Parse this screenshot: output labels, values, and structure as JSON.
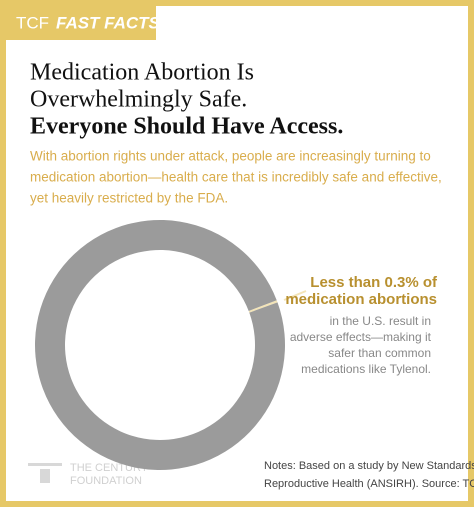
{
  "chart_data": {
    "type": "pie",
    "badge": {
      "brand": "TCF",
      "label": "FAST FACTS"
    },
    "title": [
      "Medication Abortion Is",
      "Overwhelmingly Safe.",
      "Everyone Should Have Access."
    ],
    "subtitle": [
      "With abortion rights under attack, people are increasingly turning to",
      "medication abortion—health care that is incredibly safe and effective,",
      "yet heavily restricted by the FDA."
    ],
    "values": [
      0.3,
      99.7
    ],
    "colors": [
      "#f3e4b8",
      "#9b9b9b"
    ],
    "annotation": {
      "highlight": [
        "Less than 0.3% of",
        "medication abortions"
      ],
      "detail": [
        "in the U.S. result in",
        "adverse effects—making it",
        "safer than common",
        "medications like Tylenol."
      ]
    },
    "logo": [
      "THE CENTURY",
      "FOUNDATION"
    ],
    "notes": [
      "Notes: Based on a study by New Standards in",
      "Reproductive Health (ANSIRH). Source: TCF.org."
    ]
  }
}
